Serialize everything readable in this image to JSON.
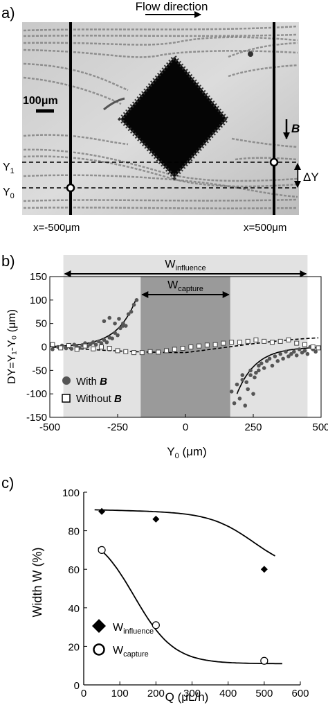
{
  "panel_a": {
    "label": "a)",
    "flow_label": "Flow direction",
    "scale_bar": "100μm",
    "field_label": "B",
    "y1_label": "Y",
    "y1_sub": "1",
    "y0_label": "Y",
    "y0_sub": "0",
    "delta_y": "ΔY",
    "x_left_label": "x=-500μm",
    "x_right_label": "x=500μm"
  },
  "panel_b": {
    "label": "b)",
    "w_influence": "W",
    "w_influence_sub": "influence",
    "w_capture": "W",
    "w_capture_sub": "capture",
    "ylabel": "DY=Y₁-Y₀ (μm)",
    "xlabel_main": "Y",
    "xlabel_sub": "0",
    "xlabel_unit": " (μm)",
    "legend_with": "With ",
    "legend_without": "Without ",
    "legend_b": "B"
  },
  "panel_c": {
    "label": "c)",
    "ylabel": "Width W  (%)",
    "xlabel": "Q  (μL/h)",
    "legend_influence": "W",
    "legend_influence_sub": "influence",
    "legend_capture": "W",
    "legend_capture_sub": "capture"
  },
  "chart_data": [
    {
      "type": "scatter",
      "panel": "b",
      "xlabel": "Y0 (μm)",
      "ylabel": "DY=Y1-Y0 (μm)",
      "xlim": [
        -500,
        500
      ],
      "ylim": [
        -150,
        150
      ],
      "xticks": [
        "-500",
        "-250",
        "0",
        "250",
        "500"
      ],
      "yticks": [
        "150",
        "100",
        "50",
        "0",
        "-50",
        "-100",
        "-150"
      ],
      "regions": {
        "influence": [
          -450,
          450
        ],
        "capture": [
          -165,
          165
        ]
      },
      "series": [
        {
          "name": "With B",
          "x": [
            -490,
            -470,
            -455,
            -440,
            -430,
            -420,
            -410,
            -400,
            -390,
            -380,
            -370,
            -360,
            -350,
            -340,
            -330,
            -320,
            -310,
            -300,
            -290,
            -280,
            -270,
            -260,
            -250,
            -240,
            -230,
            -220,
            -210,
            -200,
            -190,
            -180,
            -300,
            -280,
            -260,
            -245,
            -230,
            170,
            180,
            190,
            200,
            210,
            220,
            230,
            240,
            250,
            260,
            270,
            280,
            290,
            300,
            310,
            320,
            330,
            340,
            350,
            360,
            370,
            380,
            390,
            400,
            410,
            420,
            430,
            440,
            450,
            460,
            470,
            480,
            210,
            225,
            240,
            255,
            270
          ],
          "y": [
            -5,
            0,
            3,
            -3,
            2,
            -4,
            5,
            0,
            -2,
            4,
            8,
            2,
            6,
            10,
            5,
            12,
            8,
            15,
            10,
            20,
            18,
            30,
            25,
            40,
            50,
            45,
            70,
            75,
            90,
            100,
            55,
            62,
            50,
            60,
            45,
            -95,
            -120,
            -80,
            -110,
            -70,
            -125,
            -90,
            -60,
            -100,
            -55,
            -50,
            -35,
            -45,
            -30,
            -25,
            -40,
            -20,
            -30,
            -15,
            -25,
            -10,
            -20,
            -15,
            -10,
            -18,
            -5,
            -12,
            -8,
            -15,
            0,
            -5,
            -10,
            -60,
            -75,
            -50,
            -65,
            -40
          ]
        },
        {
          "name": "Without B",
          "x": [
            -490,
            -460,
            -430,
            -400,
            -370,
            -340,
            -310,
            -280,
            -250,
            -220,
            -190,
            -160,
            -130,
            -100,
            -70,
            -40,
            -10,
            20,
            50,
            80,
            110,
            140,
            170,
            200,
            230,
            260,
            290,
            320,
            350,
            380,
            410,
            440,
            470,
            490
          ],
          "y": [
            5,
            -2,
            3,
            -5,
            2,
            -4,
            0,
            -3,
            -8,
            -10,
            -12,
            -12,
            -10,
            -11,
            -8,
            -5,
            -3,
            0,
            2,
            4,
            5,
            8,
            10,
            10,
            12,
            15,
            12,
            10,
            12,
            15,
            8,
            5,
            0,
            -2
          ]
        }
      ]
    },
    {
      "type": "scatter",
      "panel": "c",
      "xlabel": "Q (μL/h)",
      "ylabel": "Width W (%)",
      "xlim": [
        0,
        600
      ],
      "ylim": [
        0,
        100
      ],
      "xticks": [
        "0",
        "100",
        "200",
        "300",
        "400",
        "500",
        "600"
      ],
      "yticks": [
        "0",
        "20",
        "40",
        "60",
        "80",
        "100"
      ],
      "series": [
        {
          "name": "W influence",
          "x": [
            50,
            200,
            500
          ],
          "y": [
            90,
            86,
            60
          ]
        },
        {
          "name": "W capture",
          "x": [
            50,
            200,
            500
          ],
          "y": [
            70,
            31,
            12.5
          ]
        }
      ]
    }
  ]
}
